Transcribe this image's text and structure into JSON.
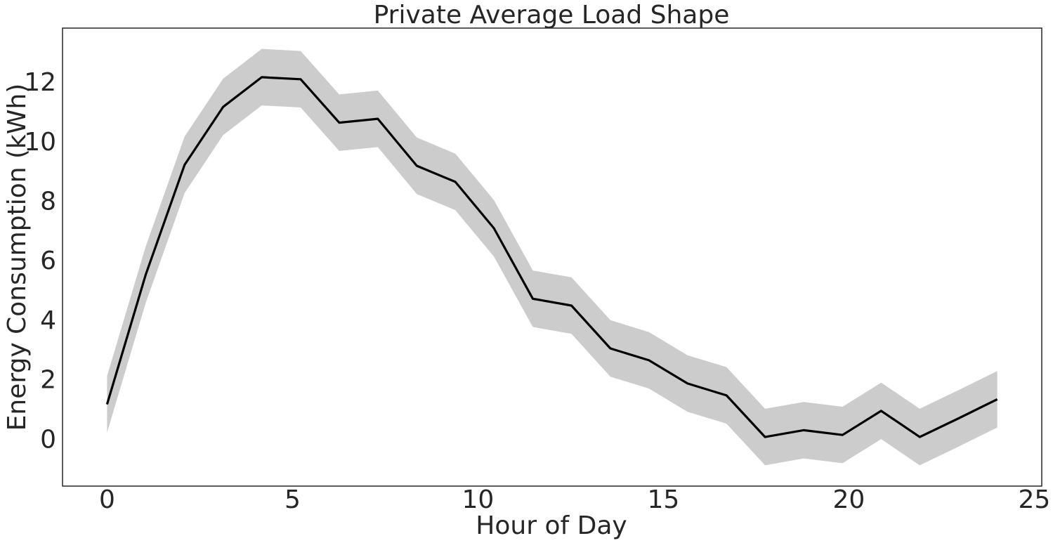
{
  "chart_data": {
    "type": "line",
    "title": "Private Average Load Shape",
    "xlabel": "Hour of Day",
    "ylabel": "Energy Consumption (kWh)",
    "xlim": [
      -1.2,
      25.2
    ],
    "ylim": [
      -1.6,
      13.8
    ],
    "xticks": [
      0,
      5,
      10,
      15,
      20,
      25
    ],
    "yticks": [
      0,
      2,
      4,
      6,
      8,
      10,
      12
    ],
    "grid": false,
    "series": [
      {
        "x": [
          0,
          1.04,
          2.09,
          3.13,
          4.17,
          5.22,
          6.26,
          7.3,
          8.35,
          9.39,
          10.43,
          11.48,
          12.52,
          13.57,
          14.61,
          15.65,
          16.7,
          17.74,
          18.78,
          19.83,
          20.87,
          21.91,
          22.96,
          24
        ],
        "values": [
          1.15,
          5.5,
          9.2,
          11.15,
          12.15,
          12.08,
          10.62,
          10.75,
          9.17,
          8.63,
          7.07,
          4.7,
          4.47,
          3.03,
          2.63,
          1.85,
          1.45,
          0.05,
          0.28,
          0.12,
          0.93,
          0.05,
          0.68,
          1.32
        ],
        "lower": [
          0.2,
          4.55,
          8.25,
          10.2,
          11.2,
          11.13,
          9.67,
          9.8,
          8.22,
          7.68,
          6.12,
          3.75,
          3.52,
          2.08,
          1.68,
          0.9,
          0.5,
          -0.9,
          -0.67,
          -0.83,
          -0.02,
          -0.9,
          -0.27,
          0.37
        ],
        "upper": [
          2.1,
          6.45,
          10.15,
          12.1,
          13.1,
          13.03,
          11.57,
          11.7,
          10.12,
          9.58,
          8.02,
          5.65,
          5.42,
          3.98,
          3.58,
          2.8,
          2.4,
          1.0,
          1.23,
          1.07,
          1.88,
          1.0,
          1.63,
          2.27
        ],
        "line_color": "#000000",
        "band_color": "#cccccc"
      }
    ]
  }
}
